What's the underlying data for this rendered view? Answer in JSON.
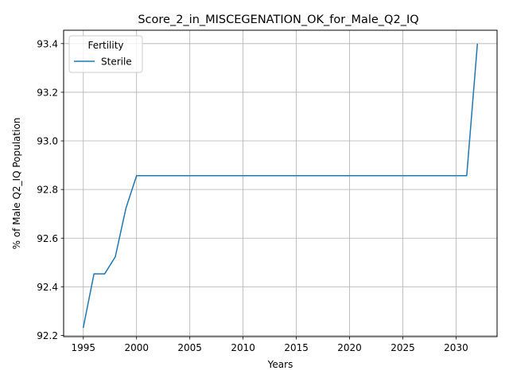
{
  "chart_data": {
    "type": "line",
    "title": "Score_2_in_MISCEGENATION_OK_for_Male_Q2_IQ",
    "xlabel": "Years",
    "ylabel": "% of Male Q2_IQ Population",
    "xlim": [
      1993.15,
      2033.85
    ],
    "ylim": [
      92.195,
      93.455
    ],
    "x_ticks": [
      1995,
      2000,
      2005,
      2010,
      2015,
      2020,
      2025,
      2030
    ],
    "y_ticks": [
      92.2,
      92.4,
      92.6,
      92.8,
      93.0,
      93.2,
      93.4
    ],
    "y_tick_labels": [
      "92.2",
      "92.4",
      "92.6",
      "92.8",
      "93.0",
      "93.2",
      "93.4"
    ],
    "grid": true,
    "legend": {
      "title": "Fertility",
      "placement": "upper-left"
    },
    "series": [
      {
        "name": "Sterile",
        "color": "#1f77b4",
        "x": [
          1995,
          1996,
          1997,
          1998,
          1999,
          2000,
          2001,
          2002,
          2003,
          2004,
          2005,
          2006,
          2007,
          2008,
          2009,
          2010,
          2011,
          2012,
          2013,
          2014,
          2015,
          2016,
          2017,
          2018,
          2019,
          2020,
          2021,
          2022,
          2023,
          2024,
          2025,
          2026,
          2027,
          2028,
          2029,
          2030,
          2031,
          2032
        ],
        "y": [
          92.233,
          92.453,
          92.453,
          92.523,
          92.723,
          92.857,
          92.857,
          92.857,
          92.857,
          92.857,
          92.857,
          92.857,
          92.857,
          92.857,
          92.857,
          92.857,
          92.857,
          92.857,
          92.857,
          92.857,
          92.857,
          92.857,
          92.857,
          92.857,
          92.857,
          92.857,
          92.857,
          92.857,
          92.857,
          92.857,
          92.857,
          92.857,
          92.857,
          92.857,
          92.857,
          92.857,
          92.857,
          93.397
        ]
      }
    ]
  }
}
